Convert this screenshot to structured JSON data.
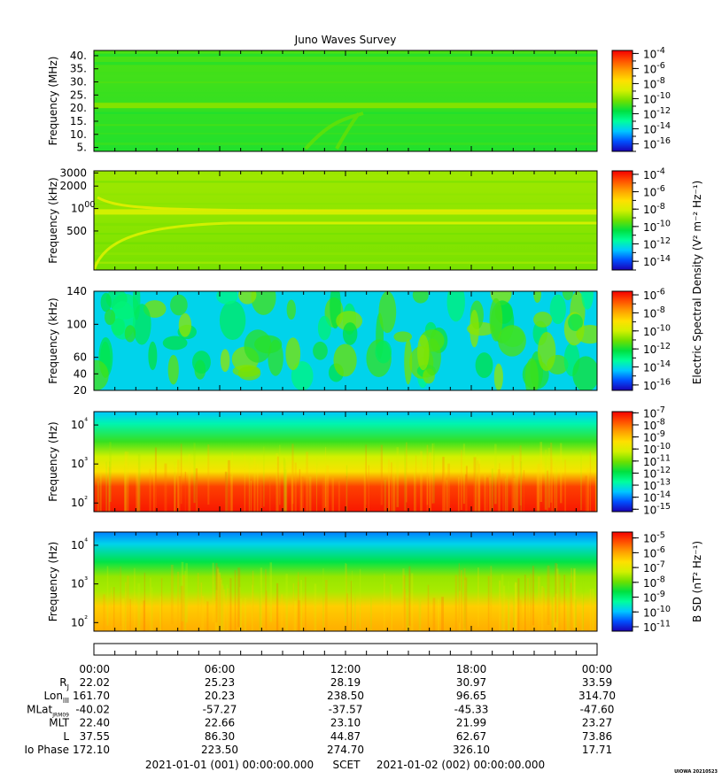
{
  "title": "Juno Waves Survey",
  "colors": {
    "colormap": [
      "#1a00b4",
      "#0050ff",
      "#00c8ff",
      "#00ff9c",
      "#00e040",
      "#6ee000",
      "#d2f000",
      "#ffe000",
      "#ffa000",
      "#ff5000",
      "#f50000"
    ]
  },
  "chart_data": [
    {
      "type": "heatmap",
      "panel": 1,
      "ylabel": "Frequency (MHz)",
      "y_ticks": [
        "40.",
        "35.",
        "30.",
        "25.",
        "20.",
        "15.",
        "10.",
        "5."
      ],
      "y_tick_values": [
        40,
        35,
        30,
        25,
        20,
        15,
        10,
        5
      ],
      "ylim": [
        3.5,
        42
      ],
      "log_y": false,
      "colorbar_ticks": [
        -4,
        -6,
        -8,
        -10,
        -12,
        -14,
        -16
      ],
      "colorbar_range": [
        -17,
        -3.6
      ],
      "colorbar_label": "",
      "features": [
        {
          "name": "background",
          "level": 0.45
        },
        {
          "name": "band at 21 MHz",
          "y": 21,
          "level": 0.52
        }
      ]
    },
    {
      "type": "heatmap",
      "panel": 2,
      "ylabel": "Frequency (kHz)",
      "y_ticks": [
        "3000",
        "2000",
        "1000",
        "500"
      ],
      "y_tick_values": [
        3000,
        2000,
        1000,
        500
      ],
      "ylim": [
        150,
        3200
      ],
      "log_y": true,
      "colorbar_ticks": [
        -4,
        -6,
        -8,
        -10,
        -12,
        -14
      ],
      "colorbar_range": [
        -15,
        -3.6
      ],
      "colorbar_label": "Electric Spectral Density (V² m⁻² Hz⁻¹)",
      "features": [
        {
          "name": "background",
          "level": 0.53
        },
        {
          "name": "band near 900 kHz",
          "y": 900,
          "level": 0.6
        }
      ]
    },
    {
      "type": "heatmap",
      "panel": 3,
      "ylabel": "Frequency (kHz)",
      "y_ticks": [
        "140",
        "100",
        "60",
        "40",
        "20"
      ],
      "y_tick_values": [
        140,
        100,
        60,
        40,
        20
      ],
      "ylim": [
        20,
        140
      ],
      "log_y": false,
      "colorbar_ticks": [
        -6,
        -8,
        -10,
        -12,
        -14,
        -16
      ],
      "colorbar_range": [
        -16.6,
        -5.6
      ],
      "colorbar_label": "",
      "features": [
        {
          "name": "background",
          "level": 0.22
        },
        {
          "name": "bursty emission",
          "level": 0.45
        }
      ]
    },
    {
      "type": "heatmap",
      "panel": 4,
      "ylabel": "Frequency (Hz)",
      "y_ticks": [
        "10⁴",
        "10³",
        "10²"
      ],
      "y_tick_values": [
        10000,
        1000,
        100
      ],
      "ylim": [
        60,
        22000
      ],
      "log_y": true,
      "colorbar_ticks": [
        -7,
        -8,
        -9,
        -10,
        -11,
        -12,
        -13,
        -14,
        -15
      ],
      "colorbar_range": [
        -15.2,
        -6.9
      ],
      "colorbar_label": "",
      "features": [
        {
          "name": "high background",
          "level": 0.2
        },
        {
          "name": "low frequency intensity",
          "level": 0.97
        }
      ]
    },
    {
      "type": "heatmap",
      "panel": 5,
      "ylabel": "Frequency (Hz)",
      "y_ticks": [
        "10⁴",
        "10³",
        "10²"
      ],
      "y_tick_values": [
        10000,
        1000,
        100
      ],
      "ylim": [
        60,
        22000
      ],
      "log_y": true,
      "colorbar_ticks": [
        -5,
        -6,
        -7,
        -8,
        -9,
        -10,
        -11
      ],
      "colorbar_range": [
        -11.3,
        -4.6
      ],
      "colorbar_label": "B SD (nT² Hz⁻¹)",
      "features": [
        {
          "name": "high background",
          "level": 0.14
        },
        {
          "name": "low frequency intensity",
          "level": 0.78
        }
      ]
    }
  ],
  "axis": {
    "time_ticks": [
      "00:00",
      "06:00",
      "12:00",
      "18:00",
      "00:00"
    ]
  },
  "ephemeris": {
    "rows": [
      {
        "label": "R",
        "sub": "J",
        "values": [
          "22.02",
          "25.23",
          "28.19",
          "30.97",
          "33.59"
        ]
      },
      {
        "label": "Lon",
        "sub": "III",
        "values": [
          "161.70",
          "20.23",
          "238.50",
          "96.65",
          "314.70"
        ]
      },
      {
        "label": "MLat",
        "sub": "JRM09",
        "values": [
          "-40.02",
          "-57.27",
          "-37.57",
          "-45.33",
          "-47.60"
        ]
      },
      {
        "label": "MLT",
        "sub": "",
        "values": [
          "22.40",
          "22.66",
          "23.10",
          "21.99",
          "23.27"
        ]
      },
      {
        "label": "L",
        "sub": "",
        "values": [
          "37.55",
          "86.30",
          "44.87",
          "62.67",
          "73.86"
        ]
      },
      {
        "label": "Io Phase",
        "sub": "",
        "values": [
          "172.10",
          "223.50",
          "274.70",
          "326.10",
          "17.71"
        ]
      }
    ]
  },
  "footer": {
    "start": "2021-01-01 (001) 00:00:00.000",
    "scet": "SCET",
    "end": "2021-01-02 (002) 00:00:00.000",
    "credit": "UIOWA 20210523"
  }
}
